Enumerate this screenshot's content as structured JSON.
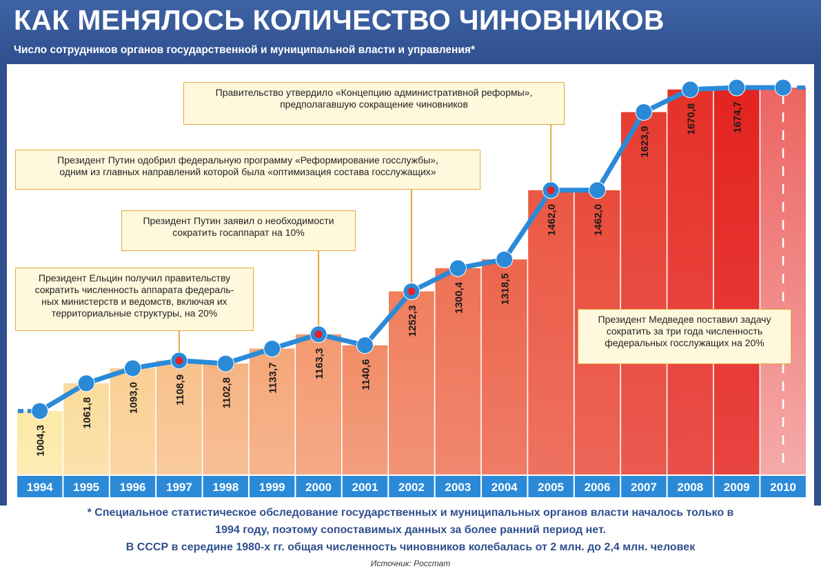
{
  "header": {
    "title": "КАК МЕНЯЛОСЬ КОЛИЧЕСТВО ЧИНОВНИКОВ",
    "subtitle": "Число сотрудников органов государственной и муниципальной власти и управления*"
  },
  "chart_data": {
    "type": "line",
    "categories": [
      "1994",
      "1995",
      "1996",
      "1997",
      "1998",
      "1999",
      "2000",
      "2001",
      "2002",
      "2003",
      "2004",
      "2005",
      "2006",
      "2007",
      "2008",
      "2009",
      "2010"
    ],
    "values": [
      1004.3,
      1061.8,
      1093.0,
      1108.9,
      1102.8,
      1133.7,
      1163.3,
      1140.6,
      1252.3,
      1300.4,
      1318.5,
      1462.0,
      1462.0,
      1623.9,
      1670.8,
      1674.7,
      null
    ],
    "labels": [
      "1004,3",
      "1061,8",
      "1093,0",
      "1108,9",
      "1102,8",
      "1133,7",
      "1163,3",
      "1140,6",
      "1252,3",
      "1300,4",
      "1318,5",
      "1462,0",
      "1462,0",
      "1623,9",
      "1670,8",
      "1674,7",
      ""
    ],
    "highlighted_years": [
      "1997",
      "2000",
      "2002",
      "2005"
    ],
    "line_color": "#2a8ad8",
    "highlight_color": "#e8202a",
    "axis_bar_color": "#2a8ad8",
    "bar_gradient": [
      "#fde9a6",
      "#e4231f"
    ]
  },
  "annotations": [
    {
      "id": "yeltsin",
      "year": "1997",
      "text": "Президент Ельцин получил правительству\nсократить численность аппарата федераль-\nных министерств и ведомств, включая их\nтерриториальные структуры, на 20%"
    },
    {
      "id": "putin-10",
      "year": "2000",
      "text": "Президент Путин заявил о необходимости\nсократить госаппарат на 10%"
    },
    {
      "id": "putin-program",
      "year": "2002",
      "text": "Президент Путин одобрил федеральную программу «Реформирование госслужбы»,\nодним из главных направлений которой была «оптимизация состава госслужащих»"
    },
    {
      "id": "government",
      "year": "2005",
      "text": "Правительство утвердило «Концепцию административной реформы»,\nпредполагавшую сокращение чиновников"
    },
    {
      "id": "medvedev",
      "year": "",
      "text": "Президент Медведев поставил задачу\nсократить за три года численность\nфедеральных госслужащих на 20%"
    }
  ],
  "footnote": {
    "line1": "* Специальное статистическое обследование государственных и муниципальных органов власти началось только в",
    "line2": "1994 году, поэтому сопоставимых данных за более ранний период нет.",
    "line3": "В СССР в середине 1980-х гг. общая численность чиновников колебалась от 2 млн. до 2,4 млн. человек"
  },
  "source": "Источник: Росстат"
}
